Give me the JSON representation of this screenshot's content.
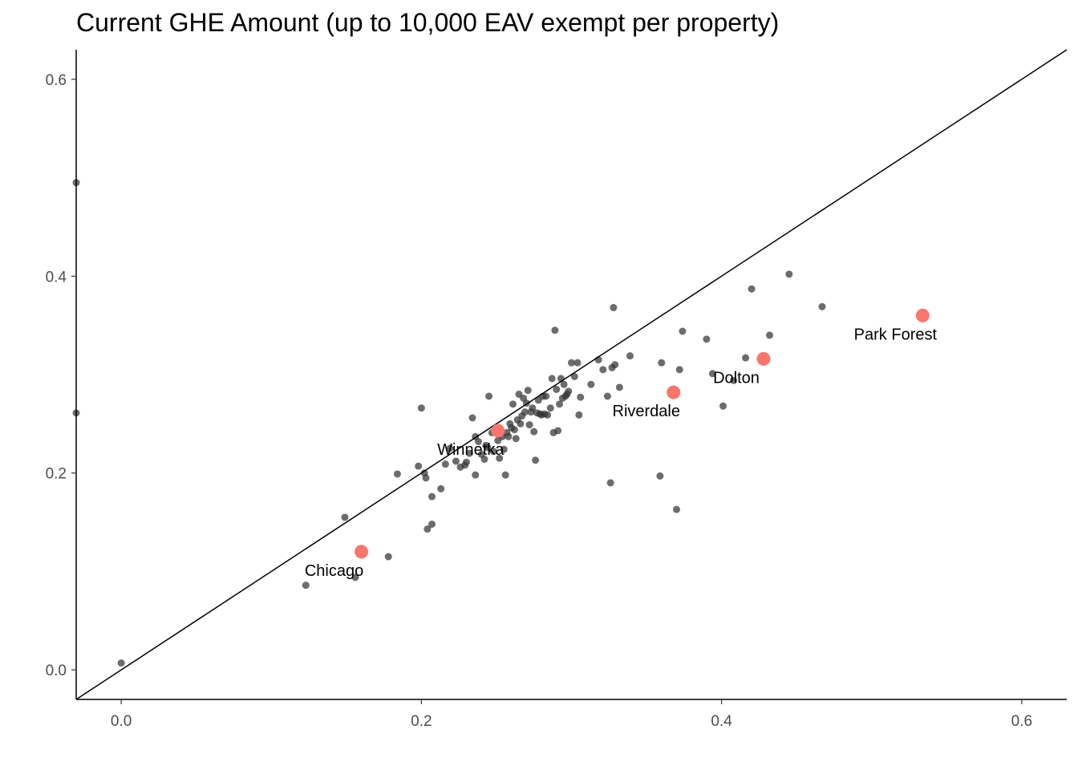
{
  "chart_data": {
    "type": "scatter",
    "title": "Current GHE Amount (up to 10,000 EAV exempt per property)",
    "xlabel": "",
    "ylabel": "",
    "xlim": [
      -0.03,
      0.63
    ],
    "ylim": [
      -0.03,
      0.63
    ],
    "x_ticks": [
      {
        "value": 0.0,
        "label": "0.0"
      },
      {
        "value": 0.2,
        "label": "0.2"
      },
      {
        "value": 0.4,
        "label": "0.4"
      },
      {
        "value": 0.6,
        "label": "0.6"
      }
    ],
    "y_ticks": [
      {
        "value": 0.0,
        "label": "0.0"
      },
      {
        "value": 0.2,
        "label": "0.2"
      },
      {
        "value": 0.4,
        "label": "0.4"
      },
      {
        "value": 0.6,
        "label": "0.6"
      }
    ],
    "grid": false,
    "reference_line": {
      "slope": 1,
      "intercept": 0
    },
    "colors": {
      "points": "#333333",
      "highlight": "#F8766D",
      "line": "#000000"
    },
    "points": [
      [
        0.0,
        0.007
      ],
      [
        -0.03,
        0.495
      ],
      [
        -0.03,
        0.261
      ],
      [
        0.123,
        0.086
      ],
      [
        0.149,
        0.155
      ],
      [
        0.156,
        0.094
      ],
      [
        0.178,
        0.115
      ],
      [
        0.184,
        0.199
      ],
      [
        0.198,
        0.207
      ],
      [
        0.2,
        0.266
      ],
      [
        0.202,
        0.2
      ],
      [
        0.203,
        0.195
      ],
      [
        0.204,
        0.143
      ],
      [
        0.207,
        0.148
      ],
      [
        0.207,
        0.176
      ],
      [
        0.213,
        0.184
      ],
      [
        0.216,
        0.209
      ],
      [
        0.219,
        0.225
      ],
      [
        0.223,
        0.212
      ],
      [
        0.226,
        0.206
      ],
      [
        0.229,
        0.208
      ],
      [
        0.23,
        0.211
      ],
      [
        0.232,
        0.22
      ],
      [
        0.234,
        0.256
      ],
      [
        0.236,
        0.237
      ],
      [
        0.236,
        0.198
      ],
      [
        0.238,
        0.232
      ],
      [
        0.24,
        0.219
      ],
      [
        0.242,
        0.214
      ],
      [
        0.243,
        0.228
      ],
      [
        0.244,
        0.226
      ],
      [
        0.245,
        0.278
      ],
      [
        0.247,
        0.241
      ],
      [
        0.248,
        0.222
      ],
      [
        0.25,
        0.245
      ],
      [
        0.251,
        0.233
      ],
      [
        0.252,
        0.215
      ],
      [
        0.254,
        0.237
      ],
      [
        0.255,
        0.224
      ],
      [
        0.256,
        0.198
      ],
      [
        0.257,
        0.241
      ],
      [
        0.258,
        0.237
      ],
      [
        0.259,
        0.25
      ],
      [
        0.26,
        0.246
      ],
      [
        0.261,
        0.27
      ],
      [
        0.262,
        0.244
      ],
      [
        0.263,
        0.235
      ],
      [
        0.264,
        0.254
      ],
      [
        0.265,
        0.28
      ],
      [
        0.266,
        0.25
      ],
      [
        0.267,
        0.258
      ],
      [
        0.268,
        0.276
      ],
      [
        0.269,
        0.262
      ],
      [
        0.27,
        0.271
      ],
      [
        0.271,
        0.284
      ],
      [
        0.272,
        0.249
      ],
      [
        0.273,
        0.262
      ],
      [
        0.274,
        0.266
      ],
      [
        0.275,
        0.242
      ],
      [
        0.276,
        0.213
      ],
      [
        0.277,
        0.261
      ],
      [
        0.278,
        0.274
      ],
      [
        0.279,
        0.26
      ],
      [
        0.28,
        0.259
      ],
      [
        0.281,
        0.278
      ],
      [
        0.282,
        0.26
      ],
      [
        0.283,
        0.278
      ],
      [
        0.284,
        0.259
      ],
      [
        0.286,
        0.266
      ],
      [
        0.287,
        0.296
      ],
      [
        0.288,
        0.241
      ],
      [
        0.289,
        0.345
      ],
      [
        0.29,
        0.285
      ],
      [
        0.291,
        0.243
      ],
      [
        0.292,
        0.27
      ],
      [
        0.293,
        0.296
      ],
      [
        0.294,
        0.276
      ],
      [
        0.295,
        0.29
      ],
      [
        0.296,
        0.278
      ],
      [
        0.297,
        0.28
      ],
      [
        0.298,
        0.283
      ],
      [
        0.3,
        0.312
      ],
      [
        0.302,
        0.298
      ],
      [
        0.304,
        0.312
      ],
      [
        0.305,
        0.259
      ],
      [
        0.306,
        0.277
      ],
      [
        0.313,
        0.29
      ],
      [
        0.318,
        0.315
      ],
      [
        0.321,
        0.305
      ],
      [
        0.324,
        0.278
      ],
      [
        0.326,
        0.19
      ],
      [
        0.327,
        0.307
      ],
      [
        0.328,
        0.368
      ],
      [
        0.329,
        0.31
      ],
      [
        0.332,
        0.287
      ],
      [
        0.339,
        0.319
      ],
      [
        0.359,
        0.197
      ],
      [
        0.36,
        0.312
      ],
      [
        0.37,
        0.163
      ],
      [
        0.372,
        0.305
      ],
      [
        0.374,
        0.344
      ],
      [
        0.39,
        0.336
      ],
      [
        0.394,
        0.301
      ],
      [
        0.401,
        0.268
      ],
      [
        0.408,
        0.294
      ],
      [
        0.416,
        0.317
      ],
      [
        0.42,
        0.387
      ],
      [
        0.432,
        0.34
      ],
      [
        0.445,
        0.402
      ],
      [
        0.467,
        0.369
      ]
    ],
    "highlighted": [
      {
        "name": "Chicago",
        "x": 0.16,
        "y": 0.12
      },
      {
        "name": "Winnetka",
        "x": 0.251,
        "y": 0.243
      },
      {
        "name": "Riverdale",
        "x": 0.368,
        "y": 0.282
      },
      {
        "name": "Dolton",
        "x": 0.428,
        "y": 0.316
      },
      {
        "name": "Park Forest",
        "x": 0.534,
        "y": 0.36
      }
    ]
  }
}
